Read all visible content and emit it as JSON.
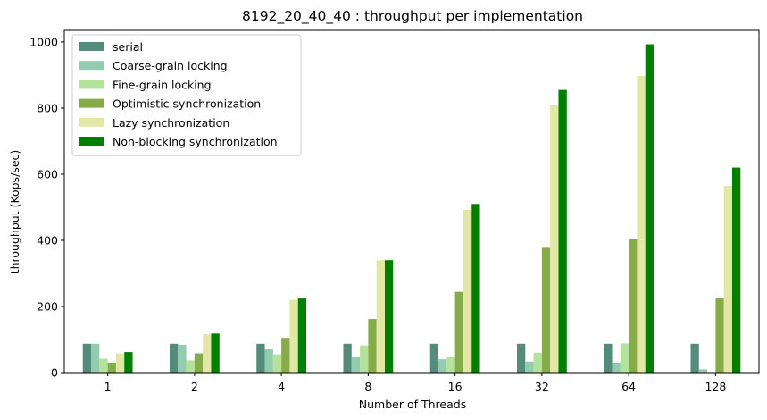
{
  "chart_data": {
    "type": "bar",
    "title": "8192_20_40_40 : throughput per implementation",
    "xlabel": "Number of Threads",
    "ylabel": "throughput (Kops/sec)",
    "categories": [
      "1",
      "2",
      "4",
      "8",
      "16",
      "32",
      "64",
      "128"
    ],
    "ylim": [
      0,
      1035
    ],
    "yticks": [
      0,
      200,
      400,
      600,
      800,
      1000
    ],
    "grid": false,
    "legend_position": "top-left",
    "series": [
      {
        "name": "serial",
        "color": "#558b7a",
        "values": [
          87,
          87,
          87,
          87,
          87,
          87,
          87,
          87
        ]
      },
      {
        "name": "Coarse-grain locking",
        "color": "#93cbb0",
        "values": [
          87,
          84,
          73,
          47,
          40,
          33,
          30,
          10
        ]
      },
      {
        "name": "Fine-grain locking",
        "color": "#b3e29b",
        "values": [
          42,
          37,
          55,
          82,
          48,
          60,
          88,
          0
        ]
      },
      {
        "name": "Optimistic synchronization",
        "color": "#86ac4a",
        "values": [
          30,
          58,
          105,
          162,
          244,
          380,
          403,
          224
        ]
      },
      {
        "name": "Lazy synchronization",
        "color": "#e2e8a4",
        "values": [
          58,
          116,
          220,
          340,
          492,
          808,
          897,
          565
        ]
      },
      {
        "name": "Non-blocking synchronization",
        "color": "#007f00",
        "values": [
          62,
          118,
          224,
          340,
          510,
          855,
          993,
          620
        ]
      }
    ]
  }
}
